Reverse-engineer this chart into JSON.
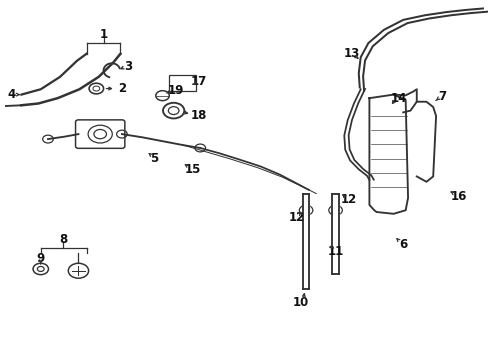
{
  "background_color": "#ffffff",
  "fig_width": 4.89,
  "fig_height": 3.6,
  "dpi": 100,
  "line_color": "#333333",
  "label_color": "#111111",
  "label_fontsize": 8.5
}
